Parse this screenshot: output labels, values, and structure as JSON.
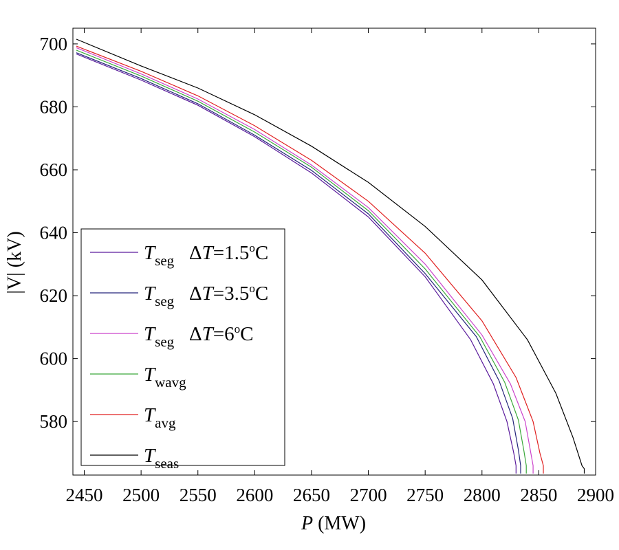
{
  "chart_data": {
    "type": "line",
    "xlabel": {
      "var": "P",
      "unit": " (MW)"
    },
    "ylabel": {
      "text": "|V| (kV)"
    },
    "xlim": [
      2440,
      2900
    ],
    "ylim": [
      563,
      705
    ],
    "xticks": [
      2450,
      2500,
      2550,
      2600,
      2650,
      2700,
      2750,
      2800,
      2850,
      2900
    ],
    "yticks": [
      580,
      600,
      620,
      640,
      660,
      680,
      700
    ],
    "grid": false,
    "legend_position": "lower-left",
    "series": [
      {
        "name": {
          "sym": "T",
          "sub": "seg",
          "dvar": "T",
          "val": "=1.5",
          "sup": "o",
          "unit": "C"
        },
        "color": "#5a1a9c",
        "x": [
          2443,
          2500,
          2550,
          2600,
          2650,
          2700,
          2750,
          2790,
          2810,
          2822,
          2828,
          2830,
          2830
        ],
        "y": [
          696.8,
          688.5,
          680.5,
          670.5,
          659.0,
          645.0,
          626.0,
          606.0,
          592.0,
          580.0,
          570.0,
          566.0,
          563.5
        ]
      },
      {
        "name": {
          "sym": "T",
          "sub": "seg",
          "dvar": "T",
          "val": "=3.5",
          "sup": "o",
          "unit": "C"
        },
        "color": "#23237a",
        "x": [
          2443,
          2500,
          2550,
          2600,
          2650,
          2700,
          2750,
          2795,
          2815,
          2827,
          2832,
          2834,
          2834
        ],
        "y": [
          697.2,
          689.0,
          681.0,
          671.0,
          659.8,
          646.0,
          627.0,
          607.0,
          593.0,
          581.0,
          571.0,
          566.0,
          563.5
        ]
      },
      {
        "name": {
          "sym": "T",
          "sub": "seg",
          "dvar": "T",
          "val": "=6",
          "sup": "o",
          "unit": "C"
        },
        "color": "#cc44cc",
        "x": [
          2443,
          2500,
          2550,
          2600,
          2650,
          2700,
          2750,
          2800,
          2825,
          2838,
          2843,
          2845,
          2845
        ],
        "y": [
          698.8,
          690.5,
          682.5,
          672.8,
          661.5,
          648.0,
          630.0,
          607.5,
          592.0,
          580.0,
          570.0,
          566.0,
          563.5
        ]
      },
      {
        "name": {
          "sym": "T",
          "sub": "wavg"
        },
        "color": "#3aa83a",
        "x": [
          2443,
          2500,
          2550,
          2600,
          2650,
          2700,
          2750,
          2798,
          2820,
          2832,
          2837,
          2839,
          2839
        ],
        "y": [
          698.0,
          689.8,
          681.8,
          672.0,
          660.8,
          647.0,
          628.5,
          607.0,
          592.5,
          580.5,
          570.5,
          566.0,
          563.5
        ]
      },
      {
        "name": {
          "sym": "T",
          "sub": "avg"
        },
        "color": "#e02020",
        "x": [
          2443,
          2500,
          2550,
          2600,
          2650,
          2700,
          2750,
          2800,
          2830,
          2845,
          2851,
          2854,
          2854
        ],
        "y": [
          699.3,
          691.3,
          683.5,
          674.0,
          663.0,
          650.0,
          633.5,
          612.0,
          594.0,
          580.0,
          570.0,
          566.0,
          563.5
        ]
      },
      {
        "name": {
          "sym": "T",
          "sub": "seas"
        },
        "color": "#000000",
        "x": [
          2443,
          2500,
          2550,
          2600,
          2650,
          2700,
          2750,
          2800,
          2840,
          2865,
          2880,
          2888,
          2890,
          2890
        ],
        "y": [
          701.5,
          693.0,
          686.0,
          677.5,
          667.5,
          656.0,
          642.0,
          625.0,
          606.0,
          589.0,
          575.0,
          566.0,
          565.0,
          563.5
        ]
      }
    ]
  }
}
